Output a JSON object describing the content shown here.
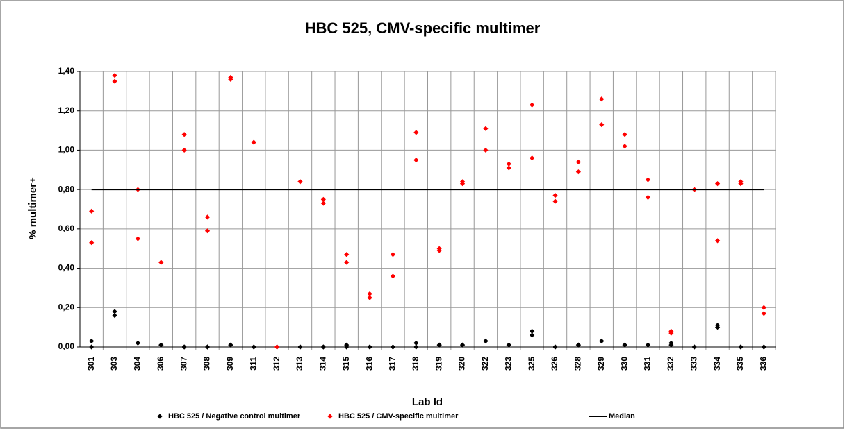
{
  "chart_data": {
    "type": "dot",
    "title": "HBC 525, CMV-specific multimer",
    "x_label": "Lab Id",
    "y_label": "% multimer+",
    "categories": [
      "301",
      "303",
      "304",
      "306",
      "307",
      "308",
      "309",
      "311",
      "312",
      "313",
      "314",
      "315",
      "316",
      "317",
      "318",
      "319",
      "320",
      "322",
      "323",
      "325",
      "326",
      "328",
      "329",
      "330",
      "331",
      "332",
      "333",
      "334",
      "335",
      "336"
    ],
    "series": [
      {
        "name": "HBC 525 / Negative control multimer",
        "color": "#000000",
        "values": [
          [
            0.03,
            0.0
          ],
          [
            0.18,
            0.16
          ],
          [
            0.02,
            0.02
          ],
          [
            0.01,
            0.01
          ],
          [
            0.0,
            0.0
          ],
          [
            0.0,
            0.0
          ],
          [
            0.01,
            0.01
          ],
          [
            0.0,
            0.0
          ],
          [
            0.0,
            0.0
          ],
          [
            0.0,
            0.0
          ],
          [
            0.0,
            0.0
          ],
          [
            0.01,
            0.0
          ],
          [
            0.0,
            0.0
          ],
          [
            0.0,
            0.0
          ],
          [
            0.02,
            0.0
          ],
          [
            0.01,
            0.01
          ],
          [
            0.01,
            0.01
          ],
          [
            0.03,
            0.03
          ],
          [
            0.01,
            0.01
          ],
          [
            0.08,
            0.06
          ],
          [
            0.0,
            0.0
          ],
          [
            0.01,
            0.01
          ],
          [
            0.03,
            0.03
          ],
          [
            0.01,
            0.01
          ],
          [
            0.01,
            0.01
          ],
          [
            0.02,
            0.01
          ],
          [
            0.0,
            0.0
          ],
          [
            0.11,
            0.1
          ],
          [
            0.0,
            0.0
          ],
          [
            0.0,
            0.0
          ]
        ]
      },
      {
        "name": "HBC 525 / CMV-specific multimer",
        "color": "#ff0000",
        "values": [
          [
            0.69,
            0.53
          ],
          [
            1.38,
            1.35
          ],
          [
            0.8,
            0.55
          ],
          [
            0.43,
            0.43
          ],
          [
            1.08,
            1.0
          ],
          [
            0.66,
            0.59
          ],
          [
            1.37,
            1.36
          ],
          [
            1.04,
            1.04
          ],
          [
            0.0,
            0.0
          ],
          [
            0.84,
            0.84
          ],
          [
            0.75,
            0.73
          ],
          [
            0.47,
            0.43
          ],
          [
            0.27,
            0.25
          ],
          [
            0.47,
            0.36
          ],
          [
            1.09,
            0.95
          ],
          [
            0.5,
            0.49
          ],
          [
            0.84,
            0.83
          ],
          [
            1.11,
            1.0
          ],
          [
            0.93,
            0.91
          ],
          [
            1.23,
            0.96
          ],
          [
            0.77,
            0.74
          ],
          [
            0.94,
            0.89
          ],
          [
            1.26,
            1.13
          ],
          [
            1.08,
            1.02
          ],
          [
            0.85,
            0.76
          ],
          [
            0.08,
            0.07
          ],
          [
            0.8,
            0.8
          ],
          [
            0.83,
            0.54
          ],
          [
            0.84,
            0.83
          ],
          [
            0.2,
            0.17
          ]
        ]
      }
    ],
    "median": {
      "name": "Median",
      "color": "#000000",
      "value": 0.8
    },
    "ylim": [
      0,
      1.4
    ],
    "yticks": [
      {
        "value": 0,
        "label": "0,00"
      },
      {
        "value": 0.2,
        "label": "0,20"
      },
      {
        "value": 0.4,
        "label": "0,40"
      },
      {
        "value": 0.6,
        "label": "0,60"
      },
      {
        "value": 0.8,
        "label": "0,80"
      },
      {
        "value": 1.0,
        "label": "1,00"
      },
      {
        "value": 1.2,
        "label": "1,20"
      },
      {
        "value": 1.4,
        "label": "1,40"
      }
    ],
    "grid": true
  }
}
